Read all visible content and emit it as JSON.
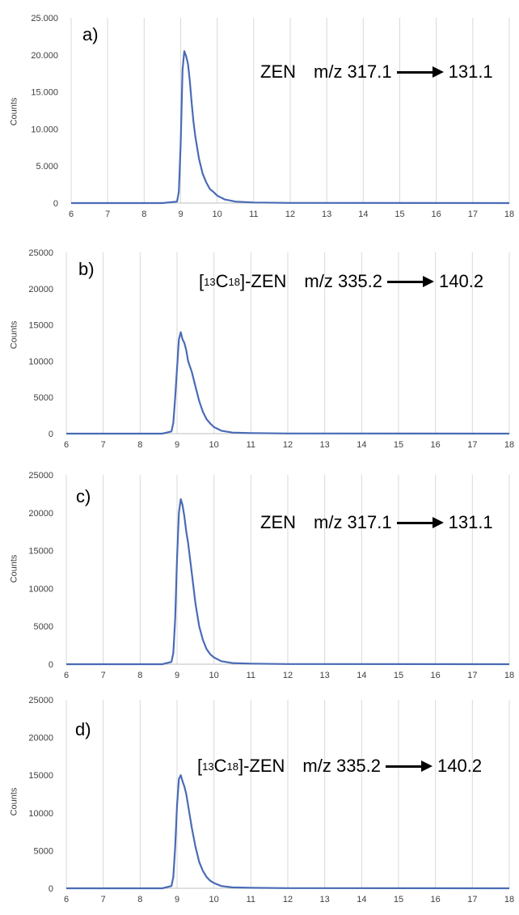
{
  "chart_data": [
    {
      "type": "line",
      "panel_label": "a)",
      "ylabel": "Counts",
      "annotation": {
        "compound": "ZEN",
        "mz_prefix": "m/z 317.1",
        "mz_product": "131.1"
      },
      "xlim": [
        6,
        18
      ],
      "ylim": [
        0,
        25000
      ],
      "xticks": [
        "6",
        "7",
        "8",
        "9",
        "10",
        "11",
        "12",
        "13",
        "14",
        "15",
        "16",
        "17",
        "18"
      ],
      "yticks": [
        "0",
        "5.000",
        "10.000",
        "15.000",
        "20.000",
        "25.000"
      ],
      "grid": "vertical",
      "series": [
        {
          "color": "#4a6bb5",
          "x": [
            6,
            8.5,
            8.9,
            8.95,
            9.0,
            9.05,
            9.1,
            9.15,
            9.2,
            9.25,
            9.3,
            9.35,
            9.4,
            9.5,
            9.6,
            9.7,
            9.8,
            9.9,
            10.0,
            10.2,
            10.5,
            11,
            12,
            18
          ],
          "y": [
            0,
            0,
            200,
            1500,
            8000,
            18000,
            20500,
            19800,
            18800,
            16500,
            13500,
            11000,
            9000,
            6000,
            4000,
            2800,
            1900,
            1500,
            1000,
            500,
            200,
            80,
            20,
            0
          ]
        }
      ]
    },
    {
      "type": "line",
      "panel_label": "b)",
      "ylabel": "Counts",
      "annotation": {
        "compound_pre": "[",
        "sup": "13",
        "compound_c": "C",
        "sub": "18",
        "compound_post": "]-ZEN",
        "mz_prefix": "m/z 335.2",
        "mz_product": "140.2"
      },
      "xlim": [
        6,
        18
      ],
      "ylim": [
        0,
        25000
      ],
      "xticks": [
        "6",
        "7",
        "8",
        "9",
        "10",
        "11",
        "12",
        "13",
        "14",
        "15",
        "16",
        "17",
        "18"
      ],
      "yticks": [
        "0",
        "5000",
        "10000",
        "15000",
        "20000",
        "25000"
      ],
      "grid": "vertical",
      "series": [
        {
          "color": "#4a6bb5",
          "x": [
            6,
            8.6,
            8.85,
            8.9,
            8.95,
            9.0,
            9.05,
            9.1,
            9.15,
            9.2,
            9.25,
            9.3,
            9.4,
            9.5,
            9.6,
            9.7,
            9.8,
            9.9,
            10.0,
            10.2,
            10.5,
            11,
            12,
            18
          ],
          "y": [
            0,
            0,
            300,
            1500,
            5000,
            9000,
            13000,
            14000,
            13000,
            12500,
            11500,
            10000,
            8500,
            6500,
            4500,
            3000,
            2000,
            1400,
            900,
            400,
            150,
            80,
            20,
            0
          ]
        }
      ]
    },
    {
      "type": "line",
      "panel_label": "c)",
      "ylabel": "Counts",
      "annotation": {
        "compound": "ZEN",
        "mz_prefix": "m/z 317.1",
        "mz_product": "131.1"
      },
      "xlim": [
        6,
        18
      ],
      "ylim": [
        0,
        25000
      ],
      "xticks": [
        "6",
        "7",
        "8",
        "9",
        "10",
        "11",
        "12",
        "13",
        "14",
        "15",
        "16",
        "17",
        "18"
      ],
      "yticks": [
        "0",
        "5000",
        "10000",
        "15000",
        "20000",
        "25000"
      ],
      "grid": "vertical",
      "series": [
        {
          "color": "#4a6bb5",
          "x": [
            6,
            8.6,
            8.85,
            8.9,
            8.95,
            9.0,
            9.05,
            9.1,
            9.15,
            9.2,
            9.25,
            9.3,
            9.35,
            9.4,
            9.5,
            9.6,
            9.7,
            9.8,
            9.9,
            10.0,
            10.2,
            10.5,
            11,
            12,
            18
          ],
          "y": [
            0,
            0,
            300,
            1500,
            6000,
            14000,
            20000,
            21800,
            21000,
            19500,
            17500,
            16000,
            14000,
            12000,
            8000,
            5000,
            3200,
            2000,
            1300,
            900,
            400,
            150,
            80,
            20,
            0
          ]
        }
      ]
    },
    {
      "type": "line",
      "panel_label": "d)",
      "ylabel": "Counts",
      "annotation": {
        "compound_pre": "[",
        "sup": "13",
        "compound_c": "C",
        "sub": "18",
        "compound_post": "]-ZEN",
        "mz_prefix": "m/z 335.2",
        "mz_product": "140.2"
      },
      "xlim": [
        6,
        18
      ],
      "ylim": [
        0,
        25000
      ],
      "xticks": [
        "6",
        "7",
        "8",
        "9",
        "10",
        "11",
        "12",
        "13",
        "14",
        "15",
        "16",
        "17",
        "18"
      ],
      "yticks": [
        "0",
        "5000",
        "10000",
        "15000",
        "20000",
        "25000"
      ],
      "grid": "vertical",
      "series": [
        {
          "color": "#4a6bb5",
          "x": [
            6,
            8.6,
            8.85,
            8.9,
            8.95,
            9.0,
            9.05,
            9.1,
            9.15,
            9.2,
            9.25,
            9.3,
            9.35,
            9.4,
            9.5,
            9.6,
            9.7,
            9.8,
            9.9,
            10.0,
            10.2,
            10.5,
            11,
            12,
            18
          ],
          "y": [
            0,
            0,
            300,
            1500,
            5500,
            11000,
            14500,
            15000,
            14200,
            13500,
            12500,
            11000,
            9500,
            8000,
            5500,
            3500,
            2300,
            1500,
            1000,
            700,
            300,
            120,
            60,
            20,
            0
          ]
        }
      ]
    }
  ]
}
